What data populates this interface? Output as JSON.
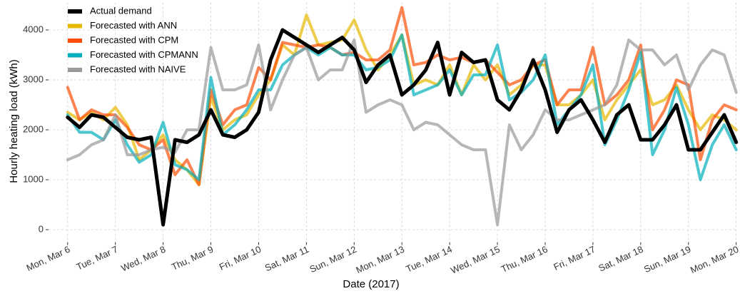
{
  "chart_data": {
    "type": "line",
    "x_label": "Date (2017)",
    "y_label": "Hourly heating load (kWh)",
    "x": [
      0,
      0.25,
      0.5,
      0.75,
      1,
      1.25,
      1.5,
      1.75,
      2,
      2.25,
      2.5,
      2.75,
      3,
      3.25,
      3.5,
      3.75,
      4,
      4.25,
      4.5,
      4.75,
      5,
      5.25,
      5.5,
      5.75,
      6,
      6.25,
      6.5,
      6.75,
      7,
      7.25,
      7.5,
      7.75,
      8,
      8.25,
      8.5,
      8.75,
      9,
      9.25,
      9.5,
      9.75,
      10,
      10.25,
      10.5,
      10.75,
      11,
      11.25,
      11.5,
      11.75,
      12,
      12.25,
      12.5,
      12.75,
      13,
      13.25,
      13.5,
      13.75,
      14
    ],
    "xlim": [
      -0.4,
      14.05
    ],
    "ylim": [
      -250,
      4550
    ],
    "xticks": [
      {
        "value": 0,
        "label": "Mon, Mar 6"
      },
      {
        "value": 1,
        "label": "Tue, Mar 7"
      },
      {
        "value": 2,
        "label": "Wed, Mar 8"
      },
      {
        "value": 3,
        "label": "Thu, Mar 9"
      },
      {
        "value": 4,
        "label": "Fri, Mar 10"
      },
      {
        "value": 5,
        "label": "Sat, Mar 11"
      },
      {
        "value": 6,
        "label": "Sun, Mar 12"
      },
      {
        "value": 7,
        "label": "Mon, Mar 13"
      },
      {
        "value": 8,
        "label": "Tue, Mar 14"
      },
      {
        "value": 9,
        "label": "Wed, Mar 15"
      },
      {
        "value": 10,
        "label": "Thu, Mar 16"
      },
      {
        "value": 11,
        "label": "Fri, Mar 17"
      },
      {
        "value": 12,
        "label": "Sat, Mar 18"
      },
      {
        "value": 13,
        "label": "Sun, Mar 19"
      },
      {
        "value": 14,
        "label": "Mon, Mar 20"
      }
    ],
    "yticks": [
      0,
      1000,
      2000,
      3000,
      4000
    ],
    "grid": true,
    "legend_position": "top-left",
    "series": [
      {
        "name": "Actual demand",
        "color": "#000000",
        "values": [
          2250,
          2050,
          2300,
          2250,
          2050,
          1850,
          1800,
          1850,
          100,
          1800,
          1750,
          1900,
          2400,
          1900,
          1850,
          2000,
          2350,
          3400,
          4000,
          3850,
          3700,
          3550,
          3700,
          3850,
          3600,
          2950,
          3300,
          3500,
          2700,
          2900,
          3200,
          3750,
          2700,
          3550,
          3350,
          3400,
          2600,
          2400,
          2800,
          3400,
          2800,
          1950,
          2400,
          2600,
          2200,
          1750,
          2300,
          2500,
          1800,
          1800,
          2100,
          2500,
          1600,
          1600,
          1950,
          2300,
          1750
        ]
      },
      {
        "name": "Forecasted with ANN",
        "color": "#E7B800",
        "values": [
          2350,
          2200,
          2350,
          2200,
          2450,
          2100,
          1400,
          1600,
          1900,
          1400,
          1200,
          900,
          2650,
          2000,
          2200,
          2300,
          2700,
          3000,
          3700,
          3500,
          4300,
          3700,
          3750,
          3800,
          4200,
          3600,
          3200,
          3500,
          3900,
          2900,
          3000,
          2900,
          3300,
          2700,
          3300,
          3000,
          3300,
          2700,
          2900,
          3300,
          3300,
          2500,
          2500,
          2700,
          3000,
          2200,
          2600,
          2900,
          3200,
          2500,
          2600,
          2900,
          2400,
          2000,
          2300,
          2200,
          2000
        ]
      },
      {
        "name": "Forecasted with CPM",
        "color": "#FC4E07",
        "values": [
          2850,
          2200,
          2400,
          2300,
          2300,
          2050,
          1700,
          1600,
          1800,
          1100,
          1400,
          900,
          2800,
          2100,
          2400,
          2500,
          3250,
          3000,
          3750,
          3700,
          3650,
          3700,
          3650,
          3500,
          3550,
          3400,
          3400,
          3600,
          4450,
          3300,
          3350,
          3500,
          3400,
          3450,
          3350,
          3400,
          3150,
          2900,
          3000,
          3300,
          3400,
          2500,
          2800,
          2800,
          3650,
          2500,
          2700,
          3000,
          3700,
          2000,
          2400,
          3000,
          2900,
          1400,
          2200,
          2500,
          2400
        ]
      },
      {
        "name": "Forecasted with CPMANN",
        "color": "#00AFBB",
        "values": [
          2300,
          1950,
          1950,
          1800,
          2200,
          1700,
          1350,
          1500,
          2150,
          1300,
          1200,
          1000,
          3050,
          1900,
          2100,
          2400,
          2800,
          2800,
          3300,
          3500,
          3650,
          3500,
          3650,
          3500,
          3500,
          3200,
          3250,
          3400,
          3900,
          2700,
          2800,
          2900,
          3200,
          2700,
          3100,
          3100,
          3700,
          2600,
          2750,
          3000,
          3500,
          2100,
          2400,
          2700,
          3300,
          1700,
          2200,
          2800,
          3550,
          1500,
          2000,
          2850,
          2100,
          1000,
          1700,
          2100,
          1600
        ]
      },
      {
        "name": "Forecasted with NAIVE",
        "color": "#999999",
        "values": [
          1400,
          1500,
          1700,
          1800,
          2300,
          1500,
          1500,
          1600,
          1650,
          1550,
          2000,
          2000,
          3650,
          2800,
          2800,
          2900,
          3700,
          2400,
          3000,
          3500,
          3650,
          3000,
          3200,
          3200,
          3800,
          2350,
          2500,
          2600,
          2500,
          2000,
          2150,
          2100,
          1900,
          1700,
          1600,
          1600,
          100,
          2100,
          1600,
          1900,
          2400,
          2200,
          2200,
          2300,
          2400,
          2500,
          2900,
          3800,
          3600,
          3600,
          3300,
          3500,
          2800,
          3300,
          3600,
          3500,
          2750
        ]
      }
    ]
  }
}
